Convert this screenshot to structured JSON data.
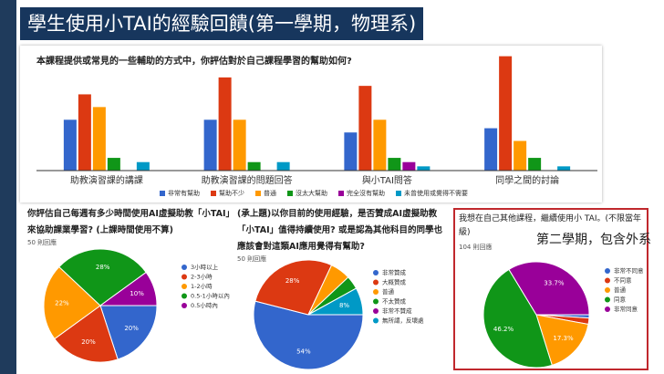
{
  "title": "學生使用小TAI的經驗回饋(第一學期，物理系)",
  "chart_data": [
    {
      "type": "bar",
      "title": "本課程提供或常見的一些輔助的方式中，你評估對於自己課程學習的幫助如何?",
      "categories": [
        "助教演習課的講課",
        "助教演習課的問題回答",
        "與小TAI問答",
        "同學之間的討論"
      ],
      "series": [
        {
          "name": "非常有幫助",
          "color": "#3366cc",
          "values": [
            12,
            12,
            9,
            10
          ]
        },
        {
          "name": "幫助不少",
          "color": "#dc3912",
          "values": [
            18,
            22,
            20,
            27
          ]
        },
        {
          "name": "普通",
          "color": "#ff9900",
          "values": [
            15,
            12,
            12,
            7
          ]
        },
        {
          "name": "沒太大幫助",
          "color": "#109618",
          "values": [
            3,
            2,
            3,
            3
          ]
        },
        {
          "name": "完全沒有幫助",
          "color": "#990099",
          "values": [
            0,
            0,
            2,
            0
          ]
        },
        {
          "name": "未曾使用或覺得不需要",
          "color": "#0099c6",
          "values": [
            2,
            2,
            1,
            1
          ]
        }
      ],
      "ylim": [
        0,
        28
      ],
      "legend": "bottom"
    },
    {
      "type": "pie",
      "title": "你評估自己每週有多少時間使用AI虛擬助教「小TAI」來協助課業學習? (上課時間使用不算)",
      "subtitle": "50 則回應",
      "categories": [
        "3小時以上",
        "2-3小時",
        "1-2小時",
        "0.5-1小時以內",
        "0.5小時內"
      ],
      "colors": [
        "#3366cc",
        "#dc3912",
        "#ff9900",
        "#109618",
        "#990099"
      ],
      "values": [
        20,
        20,
        22,
        28,
        10
      ],
      "value_labels": [
        "20%",
        "20%",
        "22%",
        "28%",
        "10%"
      ],
      "legend": "right"
    },
    {
      "type": "pie",
      "title": "(承上題)以你目前的使用經驗，是否贊成AI虛擬助教「小TAI」值得持續使用? 或是認為其他科目的同學也應該會對這類AI應用覺得有幫助?",
      "subtitle": "50 則回應",
      "categories": [
        "非常贊成",
        "大概贊成",
        "普通",
        "不太贊成",
        "非常不贊成",
        "無所謂，反壞處"
      ],
      "colors": [
        "#3366cc",
        "#dc3912",
        "#ff9900",
        "#109618",
        "#990099",
        "#0099c6"
      ],
      "values": [
        54,
        28,
        6,
        4,
        0,
        8
      ],
      "value_labels": [
        "54%",
        "28%",
        null,
        null,
        null,
        "8%"
      ],
      "legend": "right"
    },
    {
      "type": "pie",
      "title": "我想在自己其他課程，繼續使用小 TAI。(不限當年級)",
      "subtitle": "104 則回應",
      "annotation": "第二學期，包含外系",
      "categories": [
        "非常不同意",
        "不同意",
        "普通",
        "同意",
        "非常同意"
      ],
      "colors": [
        "#3366cc",
        "#dc3912",
        "#ff9900",
        "#109618",
        "#990099"
      ],
      "values": [
        1.0,
        1.9,
        17.3,
        46.2,
        33.7
      ],
      "value_labels": [
        null,
        null,
        "17.3%",
        "46.2%",
        "33.7%"
      ],
      "legend": "right"
    }
  ]
}
